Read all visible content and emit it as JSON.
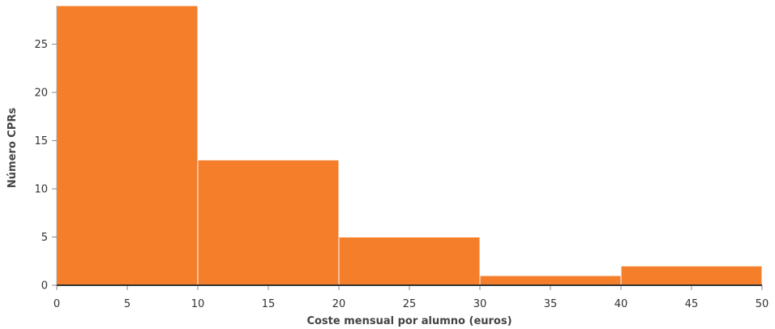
{
  "chart_data": {
    "type": "bar",
    "subtype": "histogram",
    "bins": [
      {
        "x0": 0,
        "x1": 10,
        "count": 29
      },
      {
        "x0": 10,
        "x1": 20,
        "count": 13
      },
      {
        "x0": 20,
        "x1": 30,
        "count": 5
      },
      {
        "x0": 30,
        "x1": 40,
        "count": 1
      },
      {
        "x0": 40,
        "x1": 50,
        "count": 2
      }
    ],
    "xlabel": "Coste mensual por alumno (euros)",
    "ylabel": "Número CPRs",
    "xlim": [
      0,
      50
    ],
    "ylim": [
      0,
      29
    ],
    "xticks": [
      0,
      5,
      10,
      15,
      20,
      25,
      30,
      35,
      40,
      45,
      50
    ],
    "yticks": [
      0,
      5,
      10,
      15,
      20,
      25
    ],
    "grid": false,
    "legend": "none",
    "bar_color": "#f47e2a"
  }
}
